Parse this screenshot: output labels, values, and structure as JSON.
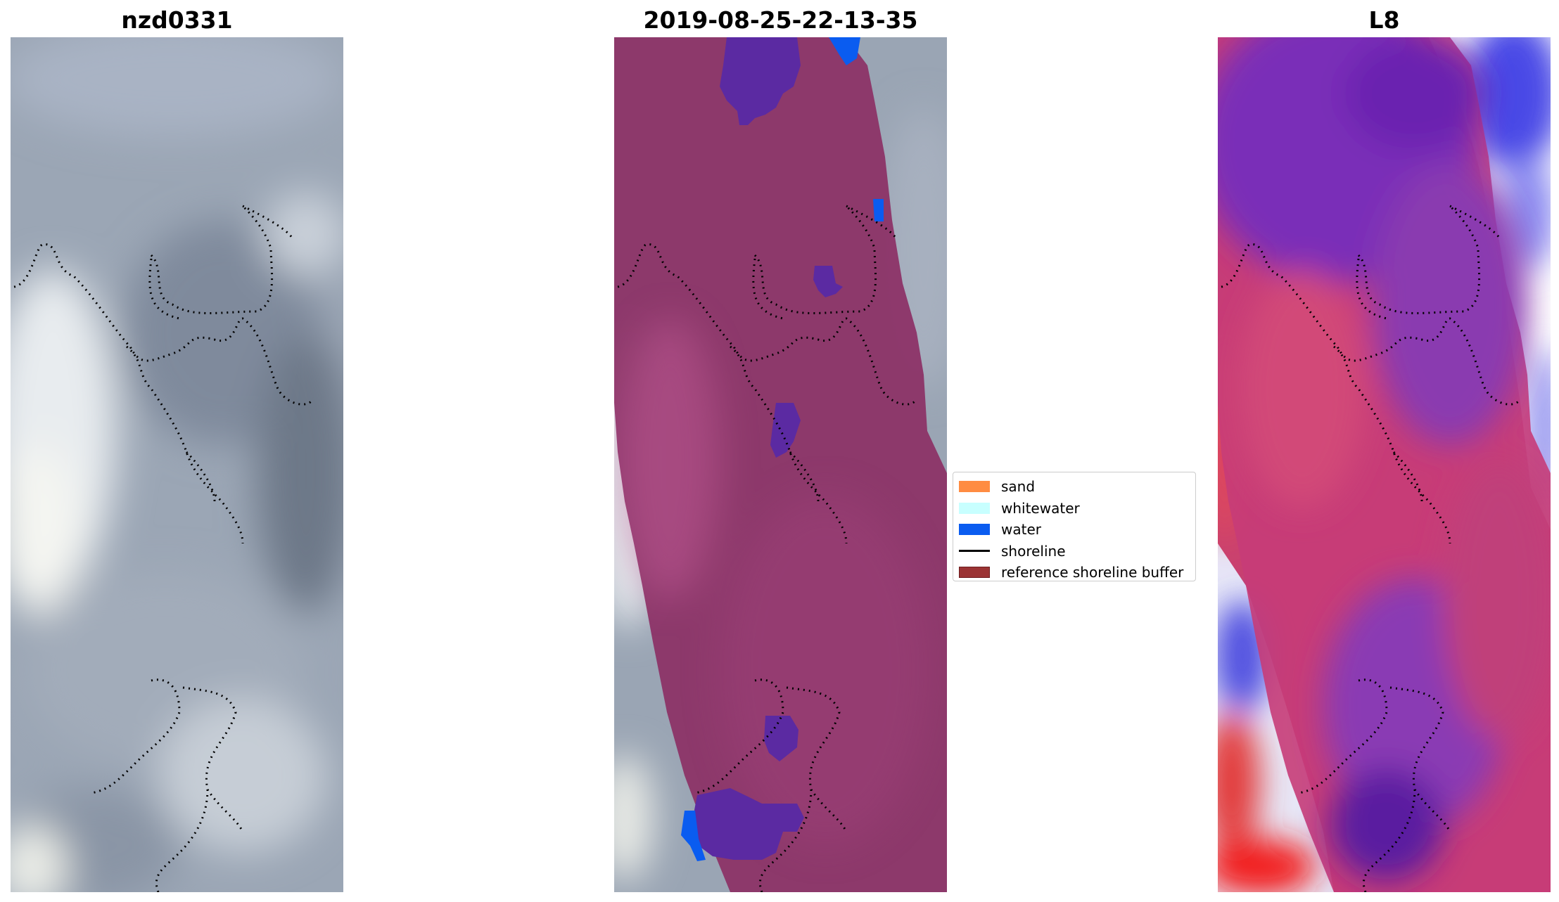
{
  "panels": [
    {
      "title": "nzd0331",
      "content": "RGB satellite image"
    },
    {
      "title": "2019-08-25-22-13-35",
      "content": "classified image"
    },
    {
      "title": "L8",
      "content": "MNDWI index image"
    }
  ],
  "legend": {
    "items": [
      {
        "label": "sand",
        "color": "#ff8c42",
        "kind": "patch"
      },
      {
        "label": "whitewater",
        "color": "#c8ffff",
        "kind": "patch"
      },
      {
        "label": "water",
        "color": "#0a5cf0",
        "kind": "patch"
      },
      {
        "label": "shoreline",
        "color": "#000000",
        "kind": "line"
      },
      {
        "label": "reference shoreline buffer",
        "color": "#9b3334",
        "kind": "patch"
      }
    ]
  },
  "colors": {
    "cloud_gray": "#9aa5b4",
    "buffer_purple": "#8c3468",
    "water_patch": "#5a2aa0",
    "index_red": "#d2386a",
    "index_blue": "#6a5ad8"
  }
}
